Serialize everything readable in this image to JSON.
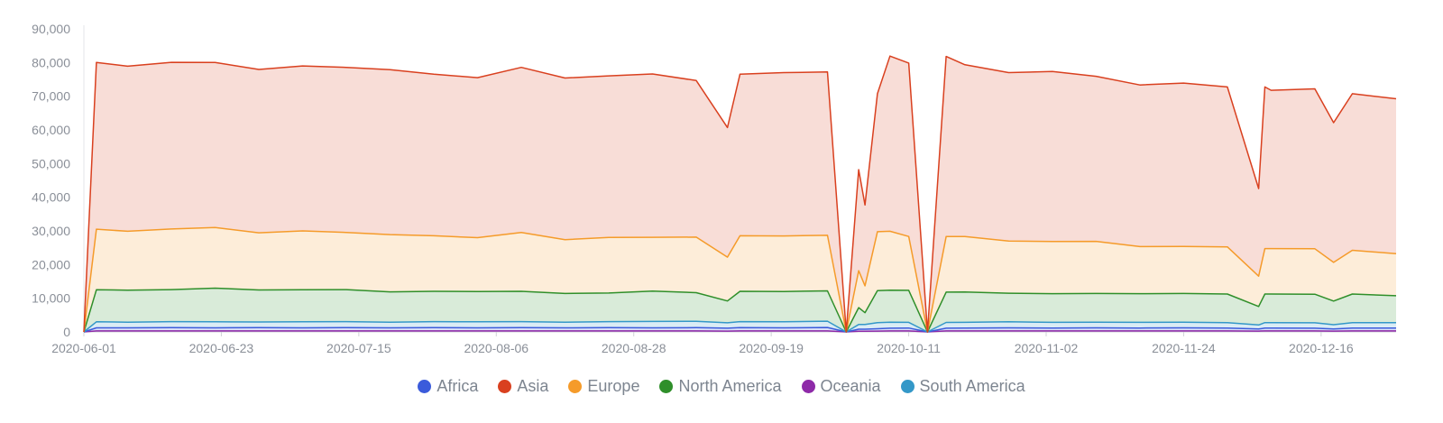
{
  "chart_data": {
    "type": "area",
    "stacked": true,
    "title": "",
    "xlabel": "",
    "ylabel": "",
    "ylim": [
      0,
      90000
    ],
    "y_ticks": [
      "0",
      "10,000",
      "20,000",
      "30,000",
      "40,000",
      "50,000",
      "60,000",
      "70,000",
      "80,000",
      "90,000"
    ],
    "x_range": [
      "2020-06-01",
      "2020-12-28"
    ],
    "x_ticks": [
      "2020-06-01",
      "2020-06-23",
      "2020-07-15",
      "2020-08-06",
      "2020-08-28",
      "2020-09-19",
      "2020-10-11",
      "2020-11-02",
      "2020-11-24",
      "2020-12-16"
    ],
    "grid": false,
    "legend_position": "bottom",
    "x": [
      "2020-06-01",
      "2020-06-03",
      "2020-06-08",
      "2020-06-15",
      "2020-06-22",
      "2020-06-29",
      "2020-07-06",
      "2020-07-13",
      "2020-07-20",
      "2020-07-27",
      "2020-08-03",
      "2020-08-10",
      "2020-08-17",
      "2020-08-24",
      "2020-08-31",
      "2020-09-07",
      "2020-09-12",
      "2020-09-14",
      "2020-09-21",
      "2020-09-28",
      "2020-10-01",
      "2020-10-03",
      "2020-10-04",
      "2020-10-06",
      "2020-10-08",
      "2020-10-11",
      "2020-10-14",
      "2020-10-17",
      "2020-10-20",
      "2020-10-27",
      "2020-11-03",
      "2020-11-10",
      "2020-11-17",
      "2020-11-24",
      "2020-12-01",
      "2020-12-06",
      "2020-12-07",
      "2020-12-08",
      "2020-12-15",
      "2020-12-18",
      "2020-12-21",
      "2020-12-28"
    ],
    "series": [
      {
        "name": "Africa",
        "color": "#3b5bdb",
        "values": [
          0,
          900,
          900,
          950,
          900,
          950,
          900,
          950,
          900,
          950,
          900,
          950,
          900,
          950,
          900,
          950,
          850,
          950,
          900,
          1000,
          0,
          600,
          600,
          700,
          800,
          850,
          0,
          800,
          850,
          900,
          850,
          900,
          850,
          900,
          850,
          600,
          850,
          850,
          800,
          600,
          850,
          850
        ]
      },
      {
        "name": "Asia",
        "color": "#d9401f",
        "values": [
          0,
          49500,
          49000,
          49500,
          49000,
          48500,
          49000,
          49000,
          49000,
          48000,
          47500,
          49000,
          48000,
          48000,
          48500,
          46500,
          38500,
          48000,
          48500,
          48500,
          0,
          30000,
          24000,
          41000,
          52000,
          51500,
          0,
          53500,
          51000,
          50000,
          50500,
          49000,
          48000,
          48500,
          47500,
          26000,
          48000,
          47000,
          47500,
          41500,
          46500,
          46000
        ]
      },
      {
        "name": "Europe",
        "color": "#f59b2a",
        "values": [
          0,
          18000,
          17500,
          18000,
          18000,
          17000,
          17500,
          17000,
          17000,
          16500,
          16000,
          17500,
          16000,
          16500,
          16000,
          16500,
          13000,
          16500,
          16500,
          16500,
          0,
          11000,
          8000,
          17500,
          17500,
          16000,
          0,
          16500,
          16500,
          15500,
          15500,
          15500,
          14000,
          14000,
          14000,
          9000,
          13500,
          13500,
          13500,
          11500,
          13000,
          12500
        ]
      },
      {
        "name": "North America",
        "color": "#2f8f2a",
        "values": [
          0,
          9500,
          9500,
          9500,
          10000,
          9500,
          9500,
          9500,
          9000,
          9000,
          9000,
          9000,
          8500,
          8500,
          9000,
          8500,
          6500,
          9000,
          9000,
          9000,
          0,
          5000,
          3500,
          9500,
          9500,
          9500,
          0,
          9000,
          9000,
          8500,
          8500,
          8500,
          8500,
          8500,
          8500,
          5500,
          8500,
          8500,
          8500,
          7000,
          8500,
          8000
        ]
      },
      {
        "name": "Oceania",
        "color": "#8e2aa8",
        "values": [
          0,
          300,
          300,
          300,
          300,
          300,
          300,
          300,
          300,
          300,
          300,
          300,
          300,
          300,
          300,
          300,
          250,
          300,
          300,
          300,
          0,
          200,
          200,
          250,
          300,
          300,
          0,
          300,
          300,
          300,
          300,
          300,
          300,
          300,
          300,
          250,
          300,
          300,
          300,
          250,
          300,
          300
        ]
      },
      {
        "name": "South America",
        "color": "#3498c8",
        "values": [
          0,
          1800,
          1700,
          1800,
          1800,
          1700,
          1800,
          1800,
          1700,
          1800,
          1800,
          1800,
          1700,
          1800,
          1900,
          1900,
          1600,
          1800,
          1800,
          1900,
          0,
          1400,
          1400,
          1800,
          1800,
          1700,
          0,
          1700,
          1700,
          1800,
          1700,
          1700,
          1700,
          1700,
          1600,
          1200,
          1600,
          1600,
          1600,
          1300,
          1600,
          1600
        ]
      }
    ]
  }
}
